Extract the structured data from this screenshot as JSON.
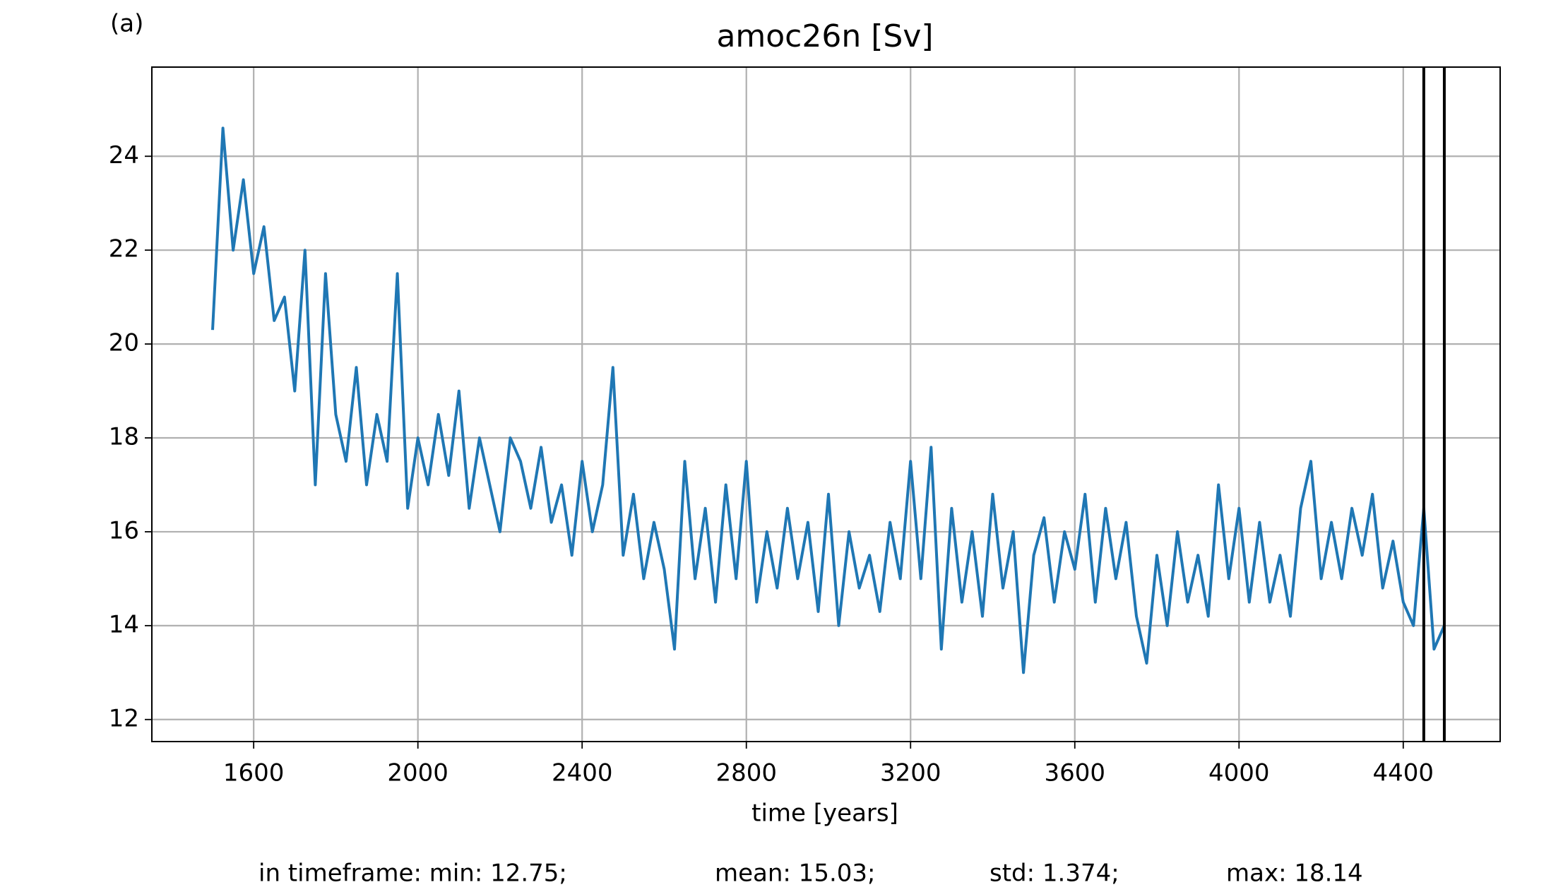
{
  "chart_data": {
    "type": "line",
    "title": "amoc26n [Sv]",
    "panel_label": "(a)",
    "xlabel": "time [years]",
    "stats": [
      "in timeframe: min: 12.75;",
      "mean: 15.03;",
      "std: 1.374;",
      "max: 18.14"
    ],
    "xlim": [
      1352,
      4636
    ],
    "ylim": [
      11.53,
      25.9
    ],
    "xticks": [
      1600,
      2000,
      2400,
      2800,
      3200,
      3600,
      4000,
      4400
    ],
    "yticks": [
      12,
      14,
      16,
      18,
      20,
      22,
      24
    ],
    "grid": true,
    "vlines": [
      4450,
      4500
    ],
    "vline_color": "#000000",
    "x": [
      1500,
      1525,
      1550,
      1575,
      1600,
      1625,
      1650,
      1675,
      1700,
      1725,
      1750,
      1775,
      1800,
      1825,
      1850,
      1875,
      1900,
      1925,
      1950,
      1975,
      2000,
      2025,
      2050,
      2075,
      2100,
      2125,
      2150,
      2175,
      2200,
      2225,
      2250,
      2275,
      2300,
      2325,
      2350,
      2375,
      2400,
      2425,
      2450,
      2475,
      2500,
      2525,
      2550,
      2575,
      2600,
      2625,
      2650,
      2675,
      2700,
      2725,
      2750,
      2775,
      2800,
      2825,
      2850,
      2875,
      2900,
      2925,
      2950,
      2975,
      3000,
      3025,
      3050,
      3075,
      3100,
      3125,
      3150,
      3175,
      3200,
      3225,
      3250,
      3275,
      3300,
      3325,
      3350,
      3375,
      3400,
      3425,
      3450,
      3475,
      3500,
      3525,
      3550,
      3575,
      3600,
      3625,
      3650,
      3675,
      3700,
      3725,
      3750,
      3775,
      3800,
      3825,
      3850,
      3875,
      3900,
      3925,
      3950,
      3975,
      4000,
      4025,
      4050,
      4075,
      4100,
      4125,
      4150,
      4175,
      4200,
      4225,
      4250,
      4275,
      4300,
      4325,
      4350,
      4375,
      4400,
      4425,
      4450,
      4475,
      4500
    ],
    "series": [
      {
        "name": "amoc26n",
        "color": "#1f77b4",
        "values": [
          20.3,
          24.6,
          22.0,
          23.5,
          21.5,
          22.5,
          20.5,
          21.0,
          19.0,
          22.0,
          17.0,
          21.5,
          18.5,
          17.5,
          19.5,
          17.0,
          18.5,
          17.5,
          21.5,
          16.5,
          18.0,
          17.0,
          18.5,
          17.2,
          19.0,
          16.5,
          18.0,
          17.0,
          16.0,
          18.0,
          17.5,
          16.5,
          17.8,
          16.2,
          17.0,
          15.5,
          17.5,
          16.0,
          17.0,
          19.5,
          15.5,
          16.8,
          15.0,
          16.2,
          15.2,
          13.5,
          17.5,
          15.0,
          16.5,
          14.5,
          17.0,
          15.0,
          17.5,
          14.5,
          16.0,
          14.8,
          16.5,
          15.0,
          16.2,
          14.3,
          16.8,
          14.0,
          16.0,
          14.8,
          15.5,
          14.3,
          16.2,
          15.0,
          17.5,
          15.0,
          17.8,
          13.5,
          16.5,
          14.5,
          16.0,
          14.2,
          16.8,
          14.8,
          16.0,
          13.0,
          15.5,
          16.3,
          14.5,
          16.0,
          15.2,
          16.8,
          14.5,
          16.5,
          15.0,
          16.2,
          14.2,
          13.2,
          15.5,
          14.0,
          16.0,
          14.5,
          15.5,
          14.2,
          17.0,
          15.0,
          16.5,
          14.5,
          16.2,
          14.5,
          15.5,
          14.2,
          16.5,
          17.5,
          15.0,
          16.2,
          15.0,
          16.5,
          15.5,
          16.8,
          14.8,
          15.8,
          14.5,
          14.0,
          16.5,
          13.5,
          14.0
        ]
      }
    ]
  }
}
